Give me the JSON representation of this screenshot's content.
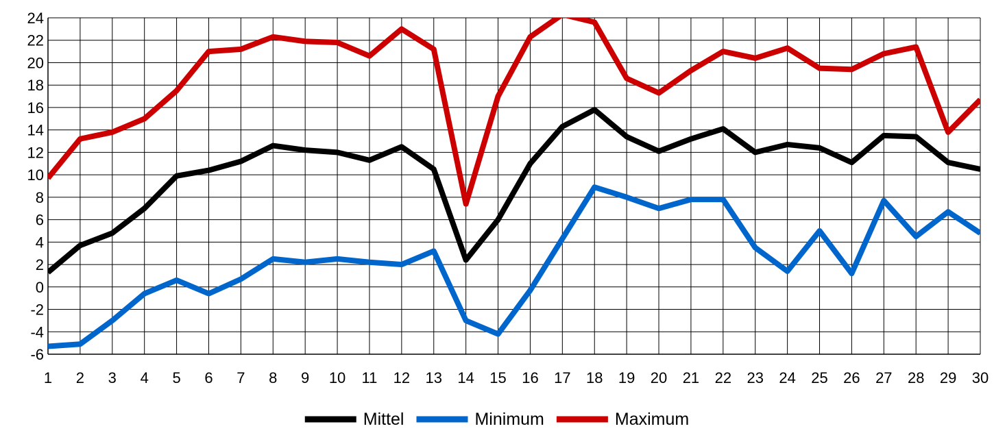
{
  "chart_data": {
    "type": "line",
    "title": "",
    "xlabel": "",
    "ylabel": "",
    "x": [
      1,
      2,
      3,
      4,
      5,
      6,
      7,
      8,
      9,
      10,
      11,
      12,
      13,
      14,
      15,
      16,
      17,
      18,
      19,
      20,
      21,
      22,
      23,
      24,
      25,
      26,
      27,
      28,
      29,
      30
    ],
    "ylim": [
      -6,
      24
    ],
    "yticks": [
      -6,
      -4,
      -2,
      0,
      2,
      4,
      6,
      8,
      10,
      12,
      14,
      16,
      18,
      20,
      22,
      24
    ],
    "grid": true,
    "legend_position": "bottom-center",
    "series": [
      {
        "name": "Mittel",
        "color": "#000000",
        "values": [
          1.3,
          3.7,
          4.8,
          7.0,
          9.9,
          10.4,
          11.2,
          12.6,
          12.2,
          12.0,
          11.3,
          12.5,
          10.5,
          2.4,
          6.0,
          11.0,
          14.3,
          15.8,
          13.4,
          12.1,
          13.2,
          14.1,
          12.0,
          12.7,
          12.4,
          11.1,
          13.5,
          13.4,
          11.1,
          10.5
        ]
      },
      {
        "name": "Minimum",
        "color": "#0066CC",
        "values": [
          -5.3,
          -5.1,
          -3.0,
          -0.6,
          0.6,
          -0.6,
          0.7,
          2.5,
          2.2,
          2.5,
          2.2,
          2.0,
          3.2,
          -3.0,
          -4.2,
          -0.3,
          4.3,
          8.9,
          8.0,
          7.0,
          7.8,
          7.8,
          3.5,
          1.4,
          5.0,
          1.2,
          7.7,
          4.5,
          6.7,
          4.8
        ]
      },
      {
        "name": "Maximum",
        "color": "#CC0000",
        "values": [
          9.7,
          13.2,
          13.8,
          15.0,
          17.5,
          21.0,
          21.2,
          22.3,
          21.9,
          21.8,
          20.6,
          23.0,
          21.2,
          7.4,
          17.0,
          22.3,
          24.3,
          23.6,
          18.6,
          17.3,
          19.3,
          21.0,
          20.4,
          21.3,
          19.5,
          19.4,
          20.8,
          21.4,
          13.8,
          16.7
        ]
      }
    ]
  }
}
